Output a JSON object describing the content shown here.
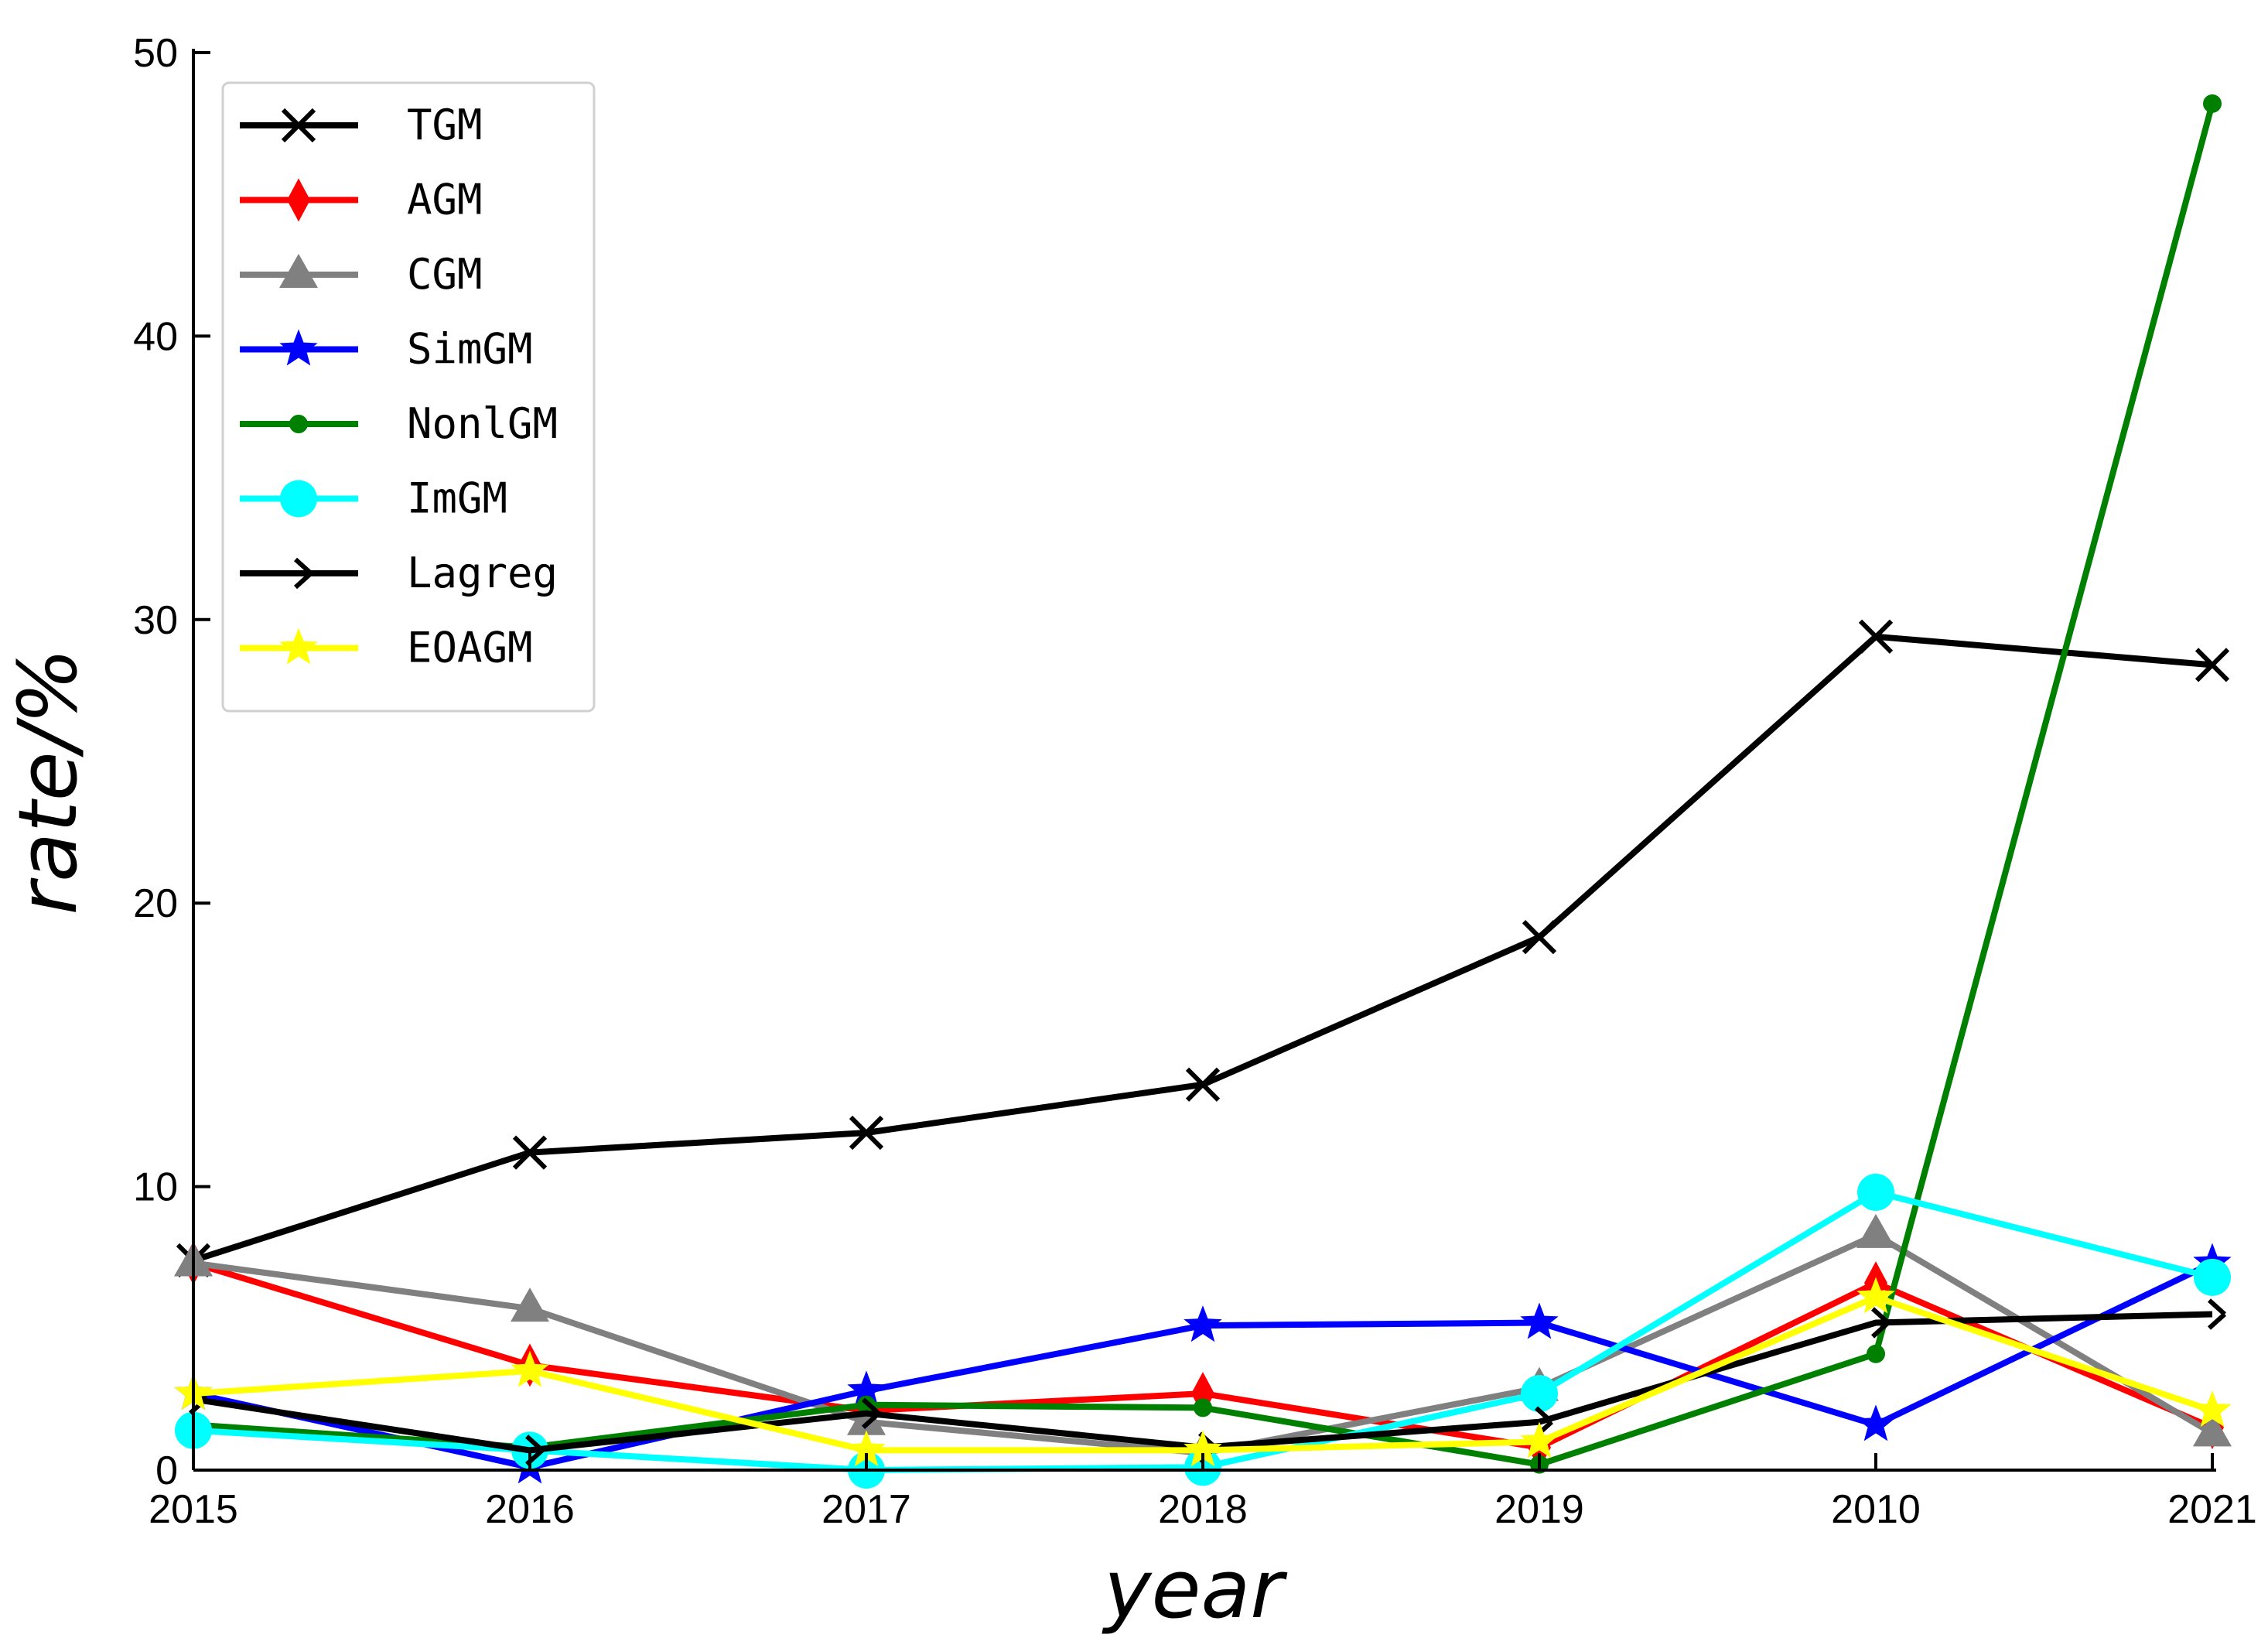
{
  "chart_data": {
    "type": "line",
    "xlabel": "year",
    "ylabel": "rate/%",
    "categories": [
      "2015",
      "2016",
      "2017",
      "2018",
      "2019",
      "2010",
      "2021"
    ],
    "ylim": [
      0,
      50
    ],
    "yticks": [
      0,
      10,
      20,
      30,
      40,
      50
    ],
    "grid": false,
    "legend_position": "top-left",
    "series": [
      {
        "name": "TGM",
        "color": "#000000",
        "marker": "x",
        "values": [
          7.4,
          11.2,
          11.9,
          13.6,
          18.8,
          29.4,
          28.4
        ]
      },
      {
        "name": "AGM",
        "color": "#ff0000",
        "marker": "diamond",
        "values": [
          7.3,
          3.7,
          2.1,
          2.7,
          0.8,
          6.6,
          1.5
        ]
      },
      {
        "name": "CGM",
        "color": "#808080",
        "marker": "triangle",
        "values": [
          7.3,
          5.7,
          1.7,
          0.6,
          2.9,
          8.3,
          1.3
        ]
      },
      {
        "name": "SimGM",
        "color": "#0000ff",
        "marker": "star",
        "values": [
          2.7,
          0.1,
          2.8,
          5.1,
          5.2,
          1.6,
          7.3
        ]
      },
      {
        "name": "NonlGM",
        "color": "#008000",
        "marker": "dot",
        "values": [
          1.6,
          0.8,
          2.3,
          2.2,
          0.2,
          4.1,
          48.2
        ]
      },
      {
        "name": "ImGM",
        "color": "#00ffff",
        "marker": "circle",
        "values": [
          1.4,
          0.7,
          0.0,
          0.1,
          2.7,
          9.8,
          6.8
        ]
      },
      {
        "name": "Lagreg",
        "color": "#000000",
        "marker": "tri-right",
        "values": [
          2.5,
          0.7,
          2.0,
          0.8,
          1.7,
          5.2,
          5.5
        ]
      },
      {
        "name": "EOAGM",
        "color": "#ffff00",
        "marker": "star",
        "values": [
          2.7,
          3.5,
          0.7,
          0.7,
          1.0,
          6.1,
          2.1
        ]
      }
    ]
  }
}
